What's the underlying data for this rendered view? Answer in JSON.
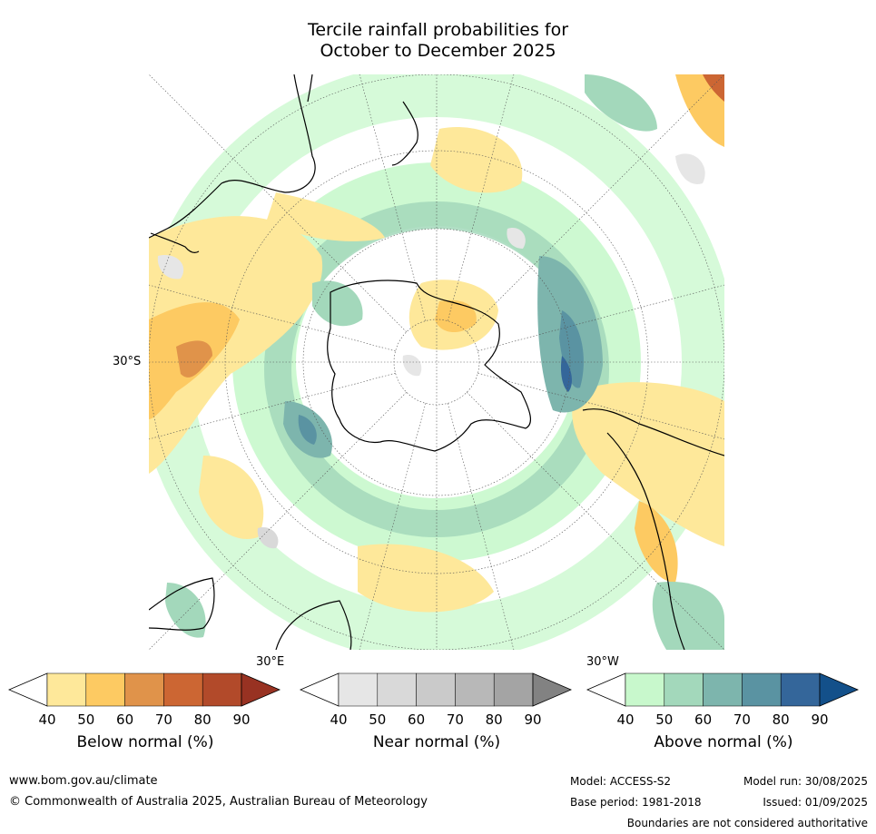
{
  "title_line1": "Tercile rainfall probabilities for",
  "title_line2": "October to December 2025",
  "map": {
    "lat_label": "30°S",
    "lon_label_left": "30°E",
    "lon_label_right": "30°W",
    "colors": {
      "land_outline": "#000000",
      "graticule": "#555555"
    }
  },
  "colorbars": [
    {
      "label": "Below normal (%)",
      "ticks": [
        "40",
        "50",
        "60",
        "70",
        "80",
        "90"
      ],
      "colors": [
        "#ffffff",
        "#fee89a",
        "#fdca62",
        "#e0934a",
        "#cc6633",
        "#b24a2a",
        "#983222"
      ]
    },
    {
      "label": "Near normal (%)",
      "ticks": [
        "40",
        "50",
        "60",
        "70",
        "80",
        "90"
      ],
      "colors": [
        "#ffffff",
        "#e6e6e6",
        "#d9d9d9",
        "#cacaca",
        "#b8b8b8",
        "#a4a4a4",
        "#828282"
      ]
    },
    {
      "label": "Above normal (%)",
      "ticks": [
        "40",
        "50",
        "60",
        "70",
        "80",
        "90"
      ],
      "colors": [
        "#ffffff",
        "#c8f8cc",
        "#a3d8bb",
        "#7db5ad",
        "#5a93a2",
        "#34669a",
        "#13508a"
      ]
    }
  ],
  "footer": {
    "website": "www.bom.gov.au/climate",
    "copyright": "© Commonwealth of Australia 2025, Australian Bureau of Meteorology",
    "model": "Model: ACCESS-S2",
    "model_run": "Model run: 30/08/2025",
    "base_period": "Base period: 1981-2018",
    "issued": "Issued: 01/09/2025",
    "disclaimer": "Boundaries are not considered authoritative"
  }
}
